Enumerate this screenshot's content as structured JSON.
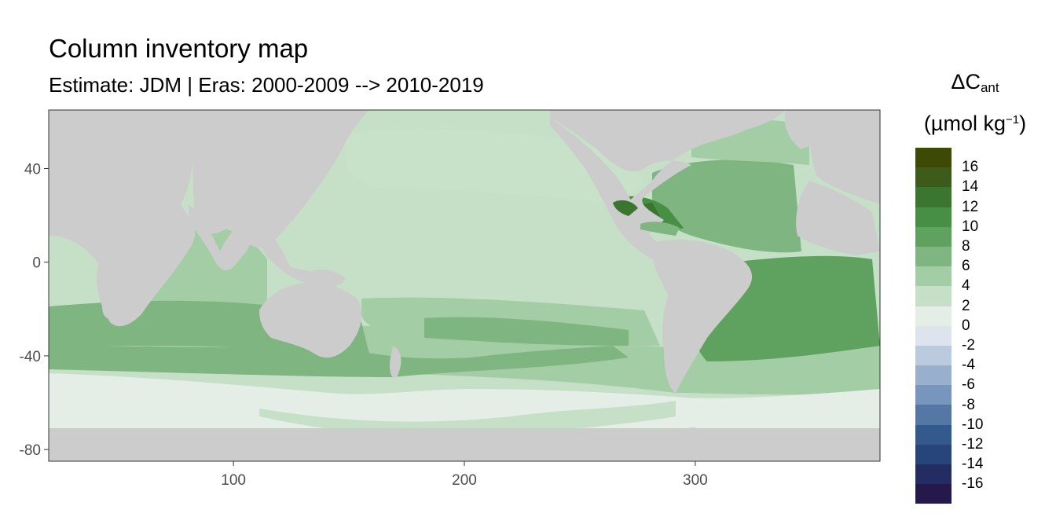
{
  "title": "Column inventory map",
  "subtitle": "Estimate: JDM  | Eras: 2000-2009 --> 2010-2019",
  "map": {
    "x_ticks": [
      100,
      200,
      300
    ],
    "y_ticks": [
      40,
      0,
      -40,
      -80
    ],
    "x_range": [
      20,
      380
    ],
    "y_range": [
      -85,
      65
    ],
    "land_color": "#cccccc",
    "panel_border_color": "#333333"
  },
  "legend": {
    "title_main": "ΔC",
    "title_sub": "ant",
    "unit_prefix": "(µmol kg",
    "unit_sup": "−1",
    "unit_suffix": ")",
    "labels": [
      "16",
      "14",
      "12",
      "10",
      "8",
      "6",
      "4",
      "2",
      "0",
      "-2",
      "-4",
      "-6",
      "-8",
      "-10",
      "-12",
      "-14",
      "-16"
    ],
    "colors": [
      "#3d4a05",
      "#3d5c1c",
      "#3b7530",
      "#468f45",
      "#5fa15f",
      "#7fb580",
      "#a3cda4",
      "#c5e0c7",
      "#e4eee6",
      "#dde4ee",
      "#bccadf",
      "#99b0cd",
      "#7896bd",
      "#5577a5",
      "#33598d",
      "#27457a",
      "#242d61",
      "#25184a"
    ]
  }
}
